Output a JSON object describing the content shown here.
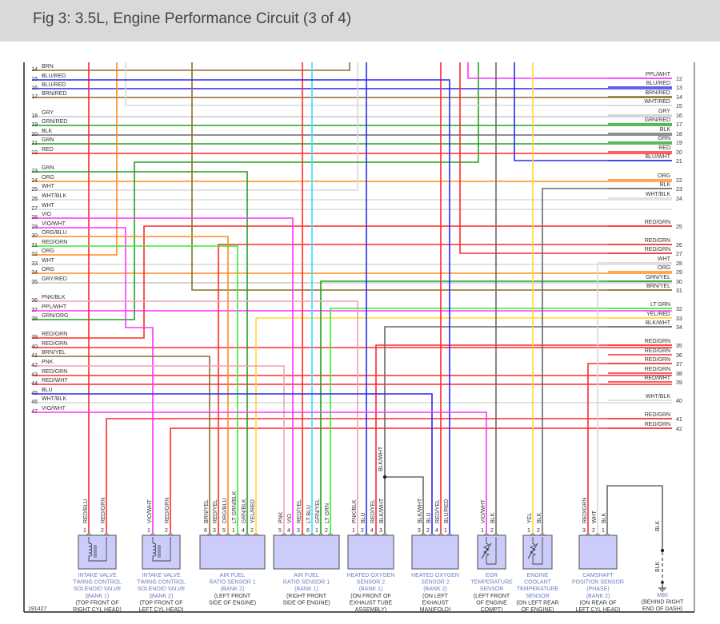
{
  "title": "Fig 3: 3.5L, Engine Performance Circuit (3 of 4)",
  "figure_id": "191427",
  "wire_colors": {
    "BRN": "#8b6d2f",
    "BLU": "#2a2aee",
    "GRY": "#c8c8c8",
    "GRN": "#22a022",
    "BLK": "#6a6a6a",
    "RED": "#ff2a2a",
    "ORG": "#ff8c1a",
    "WHT": "#d8d8d8",
    "VIO": "#ff33ff",
    "PPL": "#ff33ff",
    "PNK": "#f4a0b4",
    "YEL": "#ffd633",
    "LT GRN": "#33ee33",
    "LT BLU": "#33e0ff"
  },
  "left_connector": [
    {
      "pin": "14",
      "wire": "BRN"
    },
    {
      "pin": "15",
      "wire": "BLU/RED"
    },
    {
      "pin": "16",
      "wire": "BLU/RED"
    },
    {
      "pin": "17",
      "wire": "BRN/RED"
    },
    {
      "pin": "18",
      "wire": "GRY"
    },
    {
      "pin": "19",
      "wire": "GRN/RED"
    },
    {
      "pin": "20",
      "wire": "BLK"
    },
    {
      "pin": "21",
      "wire": "GRN"
    },
    {
      "pin": "22",
      "wire": "RED"
    },
    {
      "pin": "23",
      "wire": "GRN"
    },
    {
      "pin": "24",
      "wire": "ORG"
    },
    {
      "pin": "25",
      "wire": "WHT"
    },
    {
      "pin": "26",
      "wire": "WHT/BLK"
    },
    {
      "pin": "27",
      "wire": "WHT"
    },
    {
      "pin": "28",
      "wire": "VIO"
    },
    {
      "pin": "29",
      "wire": "VIO/WHT"
    },
    {
      "pin": "30",
      "wire": "ORG/BLU"
    },
    {
      "pin": "31",
      "wire": "RED/GRN"
    },
    {
      "pin": "32",
      "wire": "ORG"
    },
    {
      "pin": "33",
      "wire": "WHT"
    },
    {
      "pin": "34",
      "wire": "ORG"
    },
    {
      "pin": "35",
      "wire": "GRY/RED"
    },
    {
      "pin": "36",
      "wire": "PNK/BLK"
    },
    {
      "pin": "37",
      "wire": "PPL/WHT"
    },
    {
      "pin": "38",
      "wire": "GRN/ORG"
    },
    {
      "pin": "39",
      "wire": "RED/GRN"
    },
    {
      "pin": "40",
      "wire": "RED/GRN"
    },
    {
      "pin": "41",
      "wire": "BRN/YEL"
    },
    {
      "pin": "42",
      "wire": "PNK"
    },
    {
      "pin": "43",
      "wire": "RED/GRN"
    },
    {
      "pin": "44",
      "wire": "RED/WHT"
    },
    {
      "pin": "45",
      "wire": "BLU"
    },
    {
      "pin": "46",
      "wire": "WHT/BLK"
    },
    {
      "pin": "47",
      "wire": "VIO/WHT"
    }
  ],
  "right_connector": [
    {
      "pin": "12",
      "wire": "PPL/WHT"
    },
    {
      "pin": "13",
      "wire": "BLU/RED"
    },
    {
      "pin": "14",
      "wire": "BRN/RED"
    },
    {
      "pin": "15",
      "wire": "WHT/RED"
    },
    {
      "pin": "16",
      "wire": "GRY"
    },
    {
      "pin": "17",
      "wire": "GRN/RED"
    },
    {
      "pin": "18",
      "wire": "BLK"
    },
    {
      "pin": "19",
      "wire": "GRN"
    },
    {
      "pin": "20",
      "wire": "RED"
    },
    {
      "pin": "21",
      "wire": "BLU/WHT"
    },
    {
      "pin": "22",
      "wire": "ORG"
    },
    {
      "pin": "23",
      "wire": "BLK"
    },
    {
      "pin": "24",
      "wire": "WHT/BLK"
    },
    {
      "pin": "25",
      "wire": "RED/GRN"
    },
    {
      "pin": "26",
      "wire": "RED/GRN"
    },
    {
      "pin": "27",
      "wire": "RED/GRN"
    },
    {
      "pin": "28",
      "wire": "WHT"
    },
    {
      "pin": "29",
      "wire": "ORG"
    },
    {
      "pin": "30",
      "wire": "GRN/YEL"
    },
    {
      "pin": "31",
      "wire": "BRN/YEL"
    },
    {
      "pin": "32",
      "wire": "LT GRN"
    },
    {
      "pin": "33",
      "wire": "YEL/RED"
    },
    {
      "pin": "34",
      "wire": "BLK/WHT"
    },
    {
      "pin": "35",
      "wire": "RED/GRN"
    },
    {
      "pin": "36",
      "wire": "RED/GRN"
    },
    {
      "pin": "37",
      "wire": "RED/GRN"
    },
    {
      "pin": "38",
      "wire": "RED/GRN"
    },
    {
      "pin": "39",
      "wire": "RED/WHT"
    },
    {
      "pin": "40",
      "wire": "WHT/BLK"
    },
    {
      "pin": "41",
      "wire": "RED/GRN"
    },
    {
      "pin": "42",
      "wire": "RED/GRN"
    }
  ],
  "components": [
    {
      "name_lines": [
        "INTAKE VALVE",
        "TIMING CONTROL",
        "SOLENOID VALVE",
        "(BANK 1)"
      ],
      "location_lines": [
        "(TOP FRONT OF",
        "RIGHT CYL HEAD)"
      ],
      "pins": [
        {
          "num": "1",
          "wire": "RED/BLU"
        },
        {
          "num": "2",
          "wire": "RED/GRN"
        }
      ]
    },
    {
      "name_lines": [
        "INTAKE VALVE",
        "TIMING CONTROL",
        "SOLENOID VALVE",
        "(BANK 2)"
      ],
      "location_lines": [
        "(TOP FRONT OF",
        "LEFT CYL HEAD)"
      ],
      "pins": [
        {
          "num": "1",
          "wire": "VIO/WHT"
        },
        {
          "num": "2",
          "wire": "RED/GRN"
        }
      ]
    },
    {
      "name_lines": [
        "AIR FUEL",
        "RATIO SENSOR 1",
        "(BANK 2)"
      ],
      "location_lines": [
        "(LEFT FRONT",
        "SIDE OF ENGINE)"
      ],
      "pins": [
        {
          "num": "6",
          "wire": "BRN/YEL"
        },
        {
          "num": "3",
          "wire": "RED/YEL"
        },
        {
          "num": "5",
          "wire": "ORG/BLU"
        },
        {
          "num": "1",
          "wire": "LT GRN/BLK"
        },
        {
          "num": "4",
          "wire": "GRN/BLK"
        },
        {
          "num": "2",
          "wire": "YEL/RED"
        }
      ]
    },
    {
      "name_lines": [
        "AIR FUEL",
        "RATIO SENSOR 1",
        "(BANK 1)"
      ],
      "location_lines": [
        "(RIGHT FRONT",
        "SIDE OF ENGINE)"
      ],
      "pins": [
        {
          "num": "5",
          "wire": "PNK"
        },
        {
          "num": "4",
          "wire": "VIO"
        },
        {
          "num": "3",
          "wire": "RED/YEL"
        },
        {
          "num": "6",
          "wire": "LT BLU"
        },
        {
          "num": "1",
          "wire": "GRN/YEL"
        },
        {
          "num": "2",
          "wire": "LT GRN"
        }
      ]
    },
    {
      "name_lines": [
        "HEATED OXYGEN",
        "SENSOR 2",
        "(BANK 1)"
      ],
      "location_lines": [
        "(ON FRONT OF",
        "EXHAUST TUBE",
        "ASSEMBLY)"
      ],
      "pins": [
        {
          "num": "1",
          "wire": "PNK/BLK"
        },
        {
          "num": "2",
          "wire": "BLU"
        },
        {
          "num": "4",
          "wire": "RED/YEL"
        },
        {
          "num": "3",
          "wire": "BLK/WHT"
        }
      ]
    },
    {
      "name_lines": [
        "HEATED OXYGEN",
        "SENSOR 2",
        "(BANK 2)"
      ],
      "location_lines": [
        "(ON LEFT",
        "EXHAUST",
        "MANIFOLD)"
      ],
      "pins": [
        {
          "num": "3",
          "wire": "BLK/WHT"
        },
        {
          "num": "2",
          "wire": "BLU"
        },
        {
          "num": "4",
          "wire": "RED/YEL"
        },
        {
          "num": "1",
          "wire": "BLU/RED"
        }
      ]
    },
    {
      "name_lines": [
        "EGR",
        "TEMPERATURE",
        "SENSOR"
      ],
      "location_lines": [
        "(LEFT FRONT",
        "OF ENGINE",
        "COMPT)"
      ],
      "pins": [
        {
          "num": "1",
          "wire": "VIO/WHT"
        },
        {
          "num": "2",
          "wire": "BLK"
        }
      ]
    },
    {
      "name_lines": [
        "ENGINE",
        "COOLANT",
        "TEMPERATURE",
        "SENSOR"
      ],
      "location_lines": [
        "(ON LEFT REAR",
        "OF ENGINE)"
      ],
      "pins": [
        {
          "num": "1",
          "wire": "YEL"
        },
        {
          "num": "2",
          "wire": "BLK"
        }
      ]
    },
    {
      "name_lines": [
        "CAMSHAFT",
        "POSITION SENSOR",
        "(PHASE)",
        "(BANK 2)"
      ],
      "location_lines": [
        "(ON REAR OF",
        "LEFT CYL HEAD)"
      ],
      "pins": [
        {
          "num": "3",
          "wire": "RED/GRN"
        },
        {
          "num": "2",
          "wire": "WHT"
        },
        {
          "num": "1",
          "wire": "BLK"
        }
      ]
    }
  ],
  "splice_label": "BLK/WHT",
  "ground": {
    "id": "M80",
    "location_lines": [
      "(BEHIND RIGHT",
      "END OF DASH)"
    ],
    "upper_wire": "BLK",
    "lower_wire": "BLK"
  }
}
